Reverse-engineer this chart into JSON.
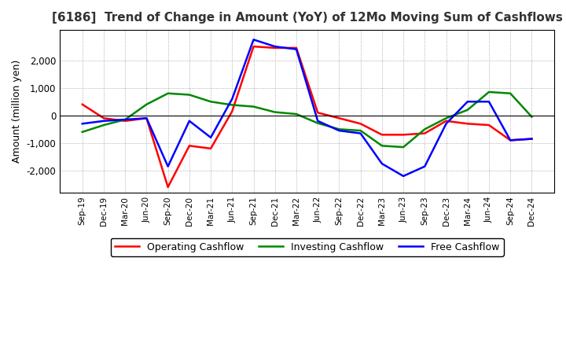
{
  "title": "[6186]  Trend of Change in Amount (YoY) of 12Mo Moving Sum of Cashflows",
  "ylabel": "Amount (million yen)",
  "x_labels": [
    "Sep-19",
    "Dec-19",
    "Mar-20",
    "Jun-20",
    "Sep-20",
    "Dec-20",
    "Mar-21",
    "Jun-21",
    "Sep-21",
    "Dec-21",
    "Mar-22",
    "Jun-22",
    "Sep-22",
    "Dec-22",
    "Mar-23",
    "Jun-23",
    "Sep-23",
    "Dec-23",
    "Mar-24",
    "Jun-24",
    "Sep-24",
    "Dec-24"
  ],
  "operating": [
    400,
    -100,
    -200,
    -100,
    -2600,
    -1100,
    -1200,
    150,
    2500,
    2450,
    2450,
    100,
    -100,
    -300,
    -700,
    -700,
    -650,
    -200,
    -300,
    -350,
    -900,
    -850
  ],
  "investing": [
    -600,
    -350,
    -150,
    400,
    800,
    750,
    500,
    380,
    320,
    120,
    50,
    -280,
    -500,
    -550,
    -1100,
    -1150,
    -500,
    -100,
    200,
    850,
    800,
    -50
  ],
  "free": [
    -300,
    -200,
    -150,
    -100,
    -1850,
    -200,
    -800,
    600,
    2750,
    2500,
    2400,
    -200,
    -550,
    -650,
    -1750,
    -2200,
    -1850,
    -300,
    500,
    500,
    -900,
    -850
  ],
  "ylim": [
    -2800,
    3100
  ],
  "yticks": [
    -2000,
    -1000,
    0,
    1000,
    2000
  ],
  "operating_color": "#ff0000",
  "investing_color": "#008800",
  "free_color": "#0000ff",
  "bg_color": "#ffffff",
  "plot_bg_color": "#ffffff",
  "grid_color": "#999999",
  "linewidth": 1.8,
  "title_color": "#333333"
}
